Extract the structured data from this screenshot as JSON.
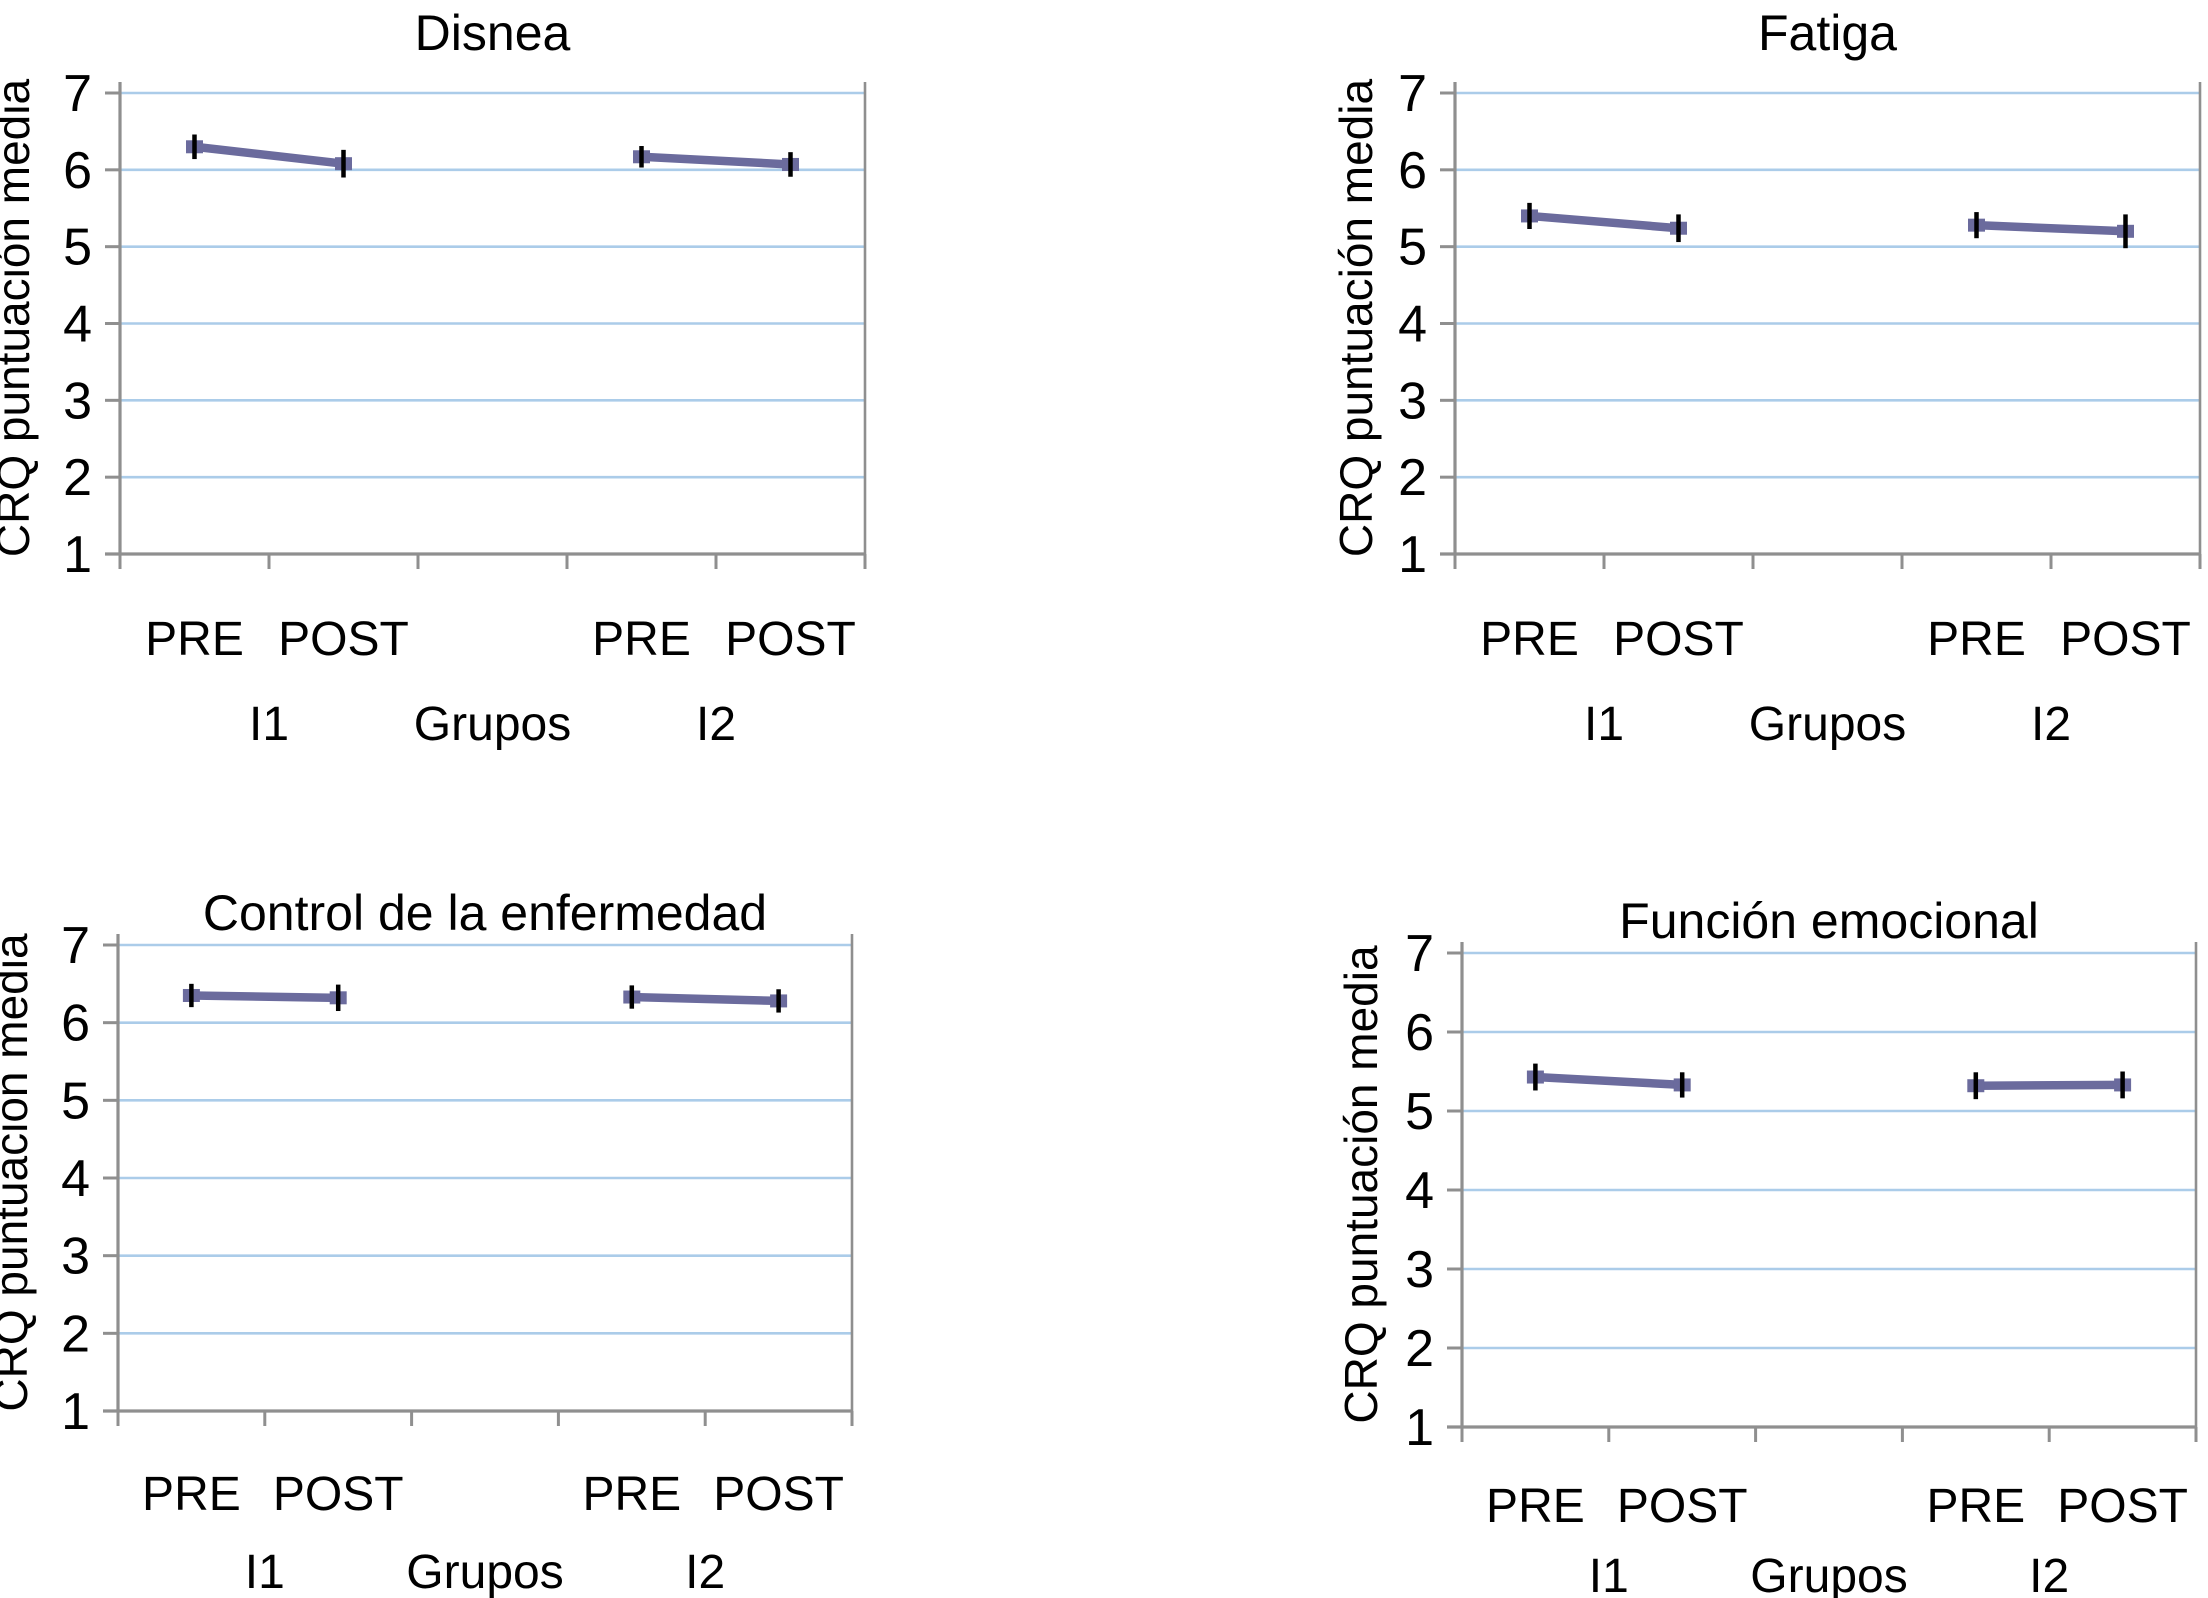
{
  "figure": {
    "description": "Cuatro paneles de medias marginales CRQ pre y post por grupo",
    "rows": 2,
    "cols": 2
  },
  "colors": {
    "line": "#6b6b9d",
    "marker": "#6b6b9d",
    "error_bar": "#000000",
    "gridline": "#abcce9",
    "axis": "#8f8f8f",
    "text": "#000000",
    "background": "#ffffff"
  },
  "chart_data": [
    {
      "type": "line",
      "title": "Disnea",
      "ylabel": "CRQ puntuación media",
      "xlabel": "Grupos",
      "x_categories": [
        "PRE",
        "POST",
        "PRE",
        "POST"
      ],
      "group_labels": [
        "I1",
        "I2"
      ],
      "ylim": [
        1,
        7
      ],
      "yticks": [
        1,
        2,
        3,
        4,
        5,
        6,
        7
      ],
      "grid": "horizontal",
      "legend": "none",
      "series": [
        {
          "name": "I1",
          "x": [
            "PRE",
            "POST"
          ],
          "values": [
            6.3,
            6.08
          ],
          "errors": [
            0.16,
            0.18
          ]
        },
        {
          "name": "I2",
          "x": [
            "PRE",
            "POST"
          ],
          "values": [
            6.17,
            6.07
          ],
          "errors": [
            0.14,
            0.16
          ]
        }
      ]
    },
    {
      "type": "line",
      "title": "Fatiga",
      "ylabel": "CRQ puntuación media",
      "xlabel": "Grupos",
      "x_categories": [
        "PRE",
        "POST",
        "PRE",
        "POST"
      ],
      "group_labels": [
        "I1",
        "I2"
      ],
      "ylim": [
        1,
        7
      ],
      "yticks": [
        1,
        2,
        3,
        4,
        5,
        6,
        7
      ],
      "grid": "horizontal",
      "legend": "none",
      "series": [
        {
          "name": "I1",
          "x": [
            "PRE",
            "POST"
          ],
          "values": [
            5.4,
            5.24
          ],
          "errors": [
            0.17,
            0.18
          ]
        },
        {
          "name": "I2",
          "x": [
            "PRE",
            "POST"
          ],
          "values": [
            5.28,
            5.2
          ],
          "errors": [
            0.17,
            0.22
          ]
        }
      ]
    },
    {
      "type": "line",
      "title": "Control de la enfermedad",
      "ylabel": "CRQ puntuación media",
      "xlabel": "Grupos",
      "x_categories": [
        "PRE",
        "POST",
        "PRE",
        "POST"
      ],
      "group_labels": [
        "I1",
        "I2"
      ],
      "ylim": [
        1,
        7
      ],
      "yticks": [
        1,
        2,
        3,
        4,
        5,
        6,
        7
      ],
      "grid": "horizontal",
      "legend": "none",
      "series": [
        {
          "name": "I1",
          "x": [
            "PRE",
            "POST"
          ],
          "values": [
            6.35,
            6.32
          ],
          "errors": [
            0.15,
            0.17
          ]
        },
        {
          "name": "I2",
          "x": [
            "PRE",
            "POST"
          ],
          "values": [
            6.33,
            6.28
          ],
          "errors": [
            0.15,
            0.15
          ]
        }
      ]
    },
    {
      "type": "line",
      "title": "Función emocional",
      "ylabel": "CRQ puntuación media",
      "xlabel": "Grupos",
      "x_categories": [
        "PRE",
        "POST",
        "PRE",
        "POST"
      ],
      "group_labels": [
        "I1",
        "I2"
      ],
      "ylim": [
        1,
        7
      ],
      "yticks": [
        1,
        2,
        3,
        4,
        5,
        6,
        7
      ],
      "grid": "horizontal",
      "legend": "none",
      "series": [
        {
          "name": "I1",
          "x": [
            "PRE",
            "POST"
          ],
          "values": [
            5.43,
            5.33
          ],
          "errors": [
            0.17,
            0.16
          ]
        },
        {
          "name": "I2",
          "x": [
            "PRE",
            "POST"
          ],
          "values": [
            5.32,
            5.33
          ],
          "errors": [
            0.17,
            0.17
          ]
        }
      ]
    }
  ]
}
